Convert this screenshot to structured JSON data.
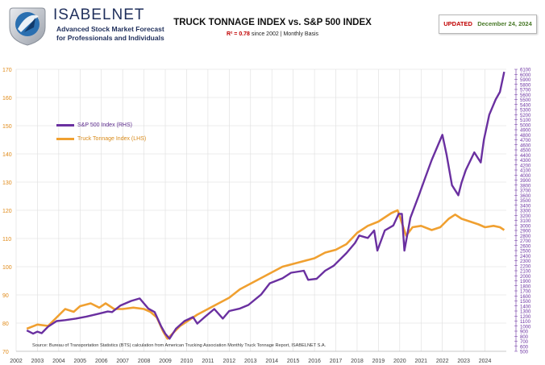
{
  "brand": {
    "name": "ISABELNET",
    "tagline_1": "Advanced Stock Market Forecast",
    "tagline_2": "for Professionals and Individuals"
  },
  "chart_title": "TRUCK TONNAGE INDEX vs. S&P 500 INDEX",
  "subtitle_r2": "R² = 0.78",
  "subtitle_rest": " since 2002 | Monthly Basis",
  "updated_label": "UPDATED",
  "updated_date": "December 24, 2024",
  "source": "Source: Bureau of Transportation Statistics (BTS) calculation from American Trucking Association Monthly Truck Tonnage Report, ISABELNET S.A.",
  "colors": {
    "sp500": "#6a30a0",
    "truck": "#f0a030",
    "grid": "#dddddd",
    "left_axis": "#e08a18",
    "right_axis": "#6a30a0",
    "x_axis": "#404040"
  },
  "chart_data": {
    "type": "line",
    "title": "TRUCK TONNAGE INDEX vs. S&P 500 INDEX",
    "x_ticks": [
      "2002",
      "2003",
      "2004",
      "2005",
      "2006",
      "2007",
      "2008",
      "2009",
      "2010",
      "2011",
      "2012",
      "2013",
      "2014",
      "2015",
      "2016",
      "2017",
      "2018",
      "2019",
      "2020",
      "2021",
      "2022",
      "2023",
      "2024"
    ],
    "left_axis": {
      "label": "Truck Tonnage Index (LHS)",
      "ylim": [
        70,
        170
      ],
      "ticks": [
        "70",
        "80",
        "90",
        "100",
        "110",
        "120",
        "130",
        "140",
        "150",
        "160",
        "170"
      ]
    },
    "right_axis": {
      "label": "S&P 500 Index (RHS)",
      "ylim": [
        500,
        6100
      ],
      "ticks": [
        "500",
        "600",
        "700",
        "800",
        "900",
        "1000",
        "1100",
        "1200",
        "1300",
        "1400",
        "1500",
        "1600",
        "1700",
        "1800",
        "1900",
        "2000",
        "2100",
        "2200",
        "2300",
        "2400",
        "2500",
        "2600",
        "2700",
        "2800",
        "2900",
        "3000",
        "3100",
        "3200",
        "3300",
        "3400",
        "3500",
        "3600",
        "3700",
        "3800",
        "3900",
        "4000",
        "4100",
        "4200",
        "4300",
        "4400",
        "4500",
        "4600",
        "4700",
        "4800",
        "4900",
        "5000",
        "5100",
        "5200",
        "5300",
        "5400",
        "5500",
        "5600",
        "5700",
        "5800",
        "5900",
        "6000",
        "6100"
      ]
    },
    "series": [
      {
        "name": "S&P 500 Index (RHS)",
        "axis": "right",
        "x": [
          2002.5,
          2002.8,
          2003.0,
          2003.2,
          2003.5,
          2003.9,
          2004.3,
          2004.8,
          2005.3,
          2005.8,
          2006.3,
          2006.5,
          2006.9,
          2007.4,
          2007.8,
          2008.2,
          2008.5,
          2008.8,
          2009.0,
          2009.2,
          2009.5,
          2009.9,
          2010.3,
          2010.5,
          2010.9,
          2011.3,
          2011.7,
          2012.0,
          2012.5,
          2012.9,
          2013.5,
          2013.9,
          2014.5,
          2014.9,
          2015.5,
          2015.7,
          2016.1,
          2016.5,
          2016.9,
          2017.5,
          2017.9,
          2018.1,
          2018.5,
          2018.8,
          2018.95,
          2019.3,
          2019.7,
          2019.95,
          2020.1,
          2020.22,
          2020.5,
          2020.9,
          2021.2,
          2021.5,
          2021.9,
          2022.0,
          2022.2,
          2022.45,
          2022.75,
          2022.9,
          2023.1,
          2023.5,
          2023.8,
          2023.95,
          2024.2,
          2024.5,
          2024.7,
          2024.9
        ],
        "y": [
          915,
          850,
          890,
          860,
          990,
          1100,
          1120,
          1150,
          1190,
          1240,
          1290,
          1280,
          1410,
          1500,
          1550,
          1350,
          1280,
          1000,
          850,
          750,
          950,
          1100,
          1180,
          1050,
          1200,
          1340,
          1150,
          1300,
          1350,
          1420,
          1630,
          1850,
          1950,
          2060,
          2100,
          1920,
          1940,
          2100,
          2200,
          2450,
          2650,
          2800,
          2750,
          2900,
          2500,
          2900,
          3000,
          3230,
          3230,
          2500,
          3150,
          3600,
          3950,
          4300,
          4700,
          4800,
          4400,
          3800,
          3600,
          3850,
          4100,
          4450,
          4250,
          4700,
          5200,
          5500,
          5650,
          6050
        ]
      },
      {
        "name": "Truck Tonnage Index (LHS)",
        "axis": "left",
        "x": [
          2002.5,
          2003.0,
          2003.5,
          2003.9,
          2004.3,
          2004.7,
          2005.0,
          2005.5,
          2005.9,
          2006.2,
          2006.6,
          2007.0,
          2007.5,
          2008.0,
          2008.3,
          2008.6,
          2008.9,
          2009.1,
          2009.3,
          2009.7,
          2010.0,
          2010.5,
          2011.0,
          2011.5,
          2012.0,
          2012.5,
          2013.0,
          2013.5,
          2014.0,
          2014.5,
          2015.0,
          2015.5,
          2016.0,
          2016.5,
          2017.0,
          2017.5,
          2018.0,
          2018.5,
          2019.0,
          2019.6,
          2019.9,
          2020.1,
          2020.3,
          2020.6,
          2021.0,
          2021.5,
          2021.9,
          2022.3,
          2022.6,
          2022.9,
          2023.3,
          2023.7,
          2024.0,
          2024.4,
          2024.7,
          2024.9
        ],
        "y": [
          78,
          79.5,
          79,
          82,
          85,
          84,
          86,
          87,
          85.5,
          87,
          85,
          85,
          85.5,
          85,
          84,
          82,
          77,
          74.5,
          76,
          79,
          80.5,
          83,
          85,
          87,
          89,
          92,
          94,
          96,
          98,
          100,
          101,
          102,
          103,
          105,
          106,
          108,
          112,
          114.5,
          116,
          119,
          120,
          115.5,
          111,
          114,
          114.5,
          113,
          114,
          117,
          118.5,
          117,
          116,
          115,
          114,
          114.5,
          114,
          113
        ]
      }
    ]
  }
}
